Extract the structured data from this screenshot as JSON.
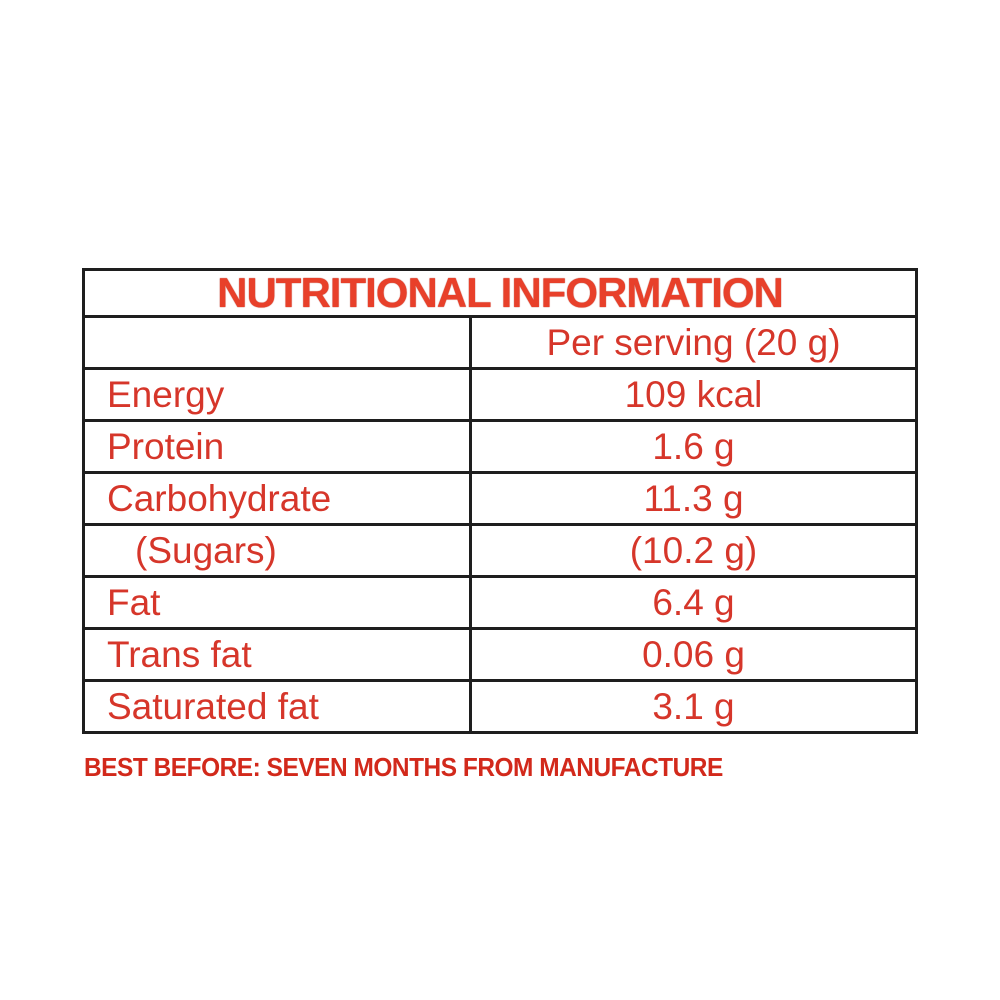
{
  "table": {
    "title": "NUTRITIONAL INFORMATION",
    "column_header": "Per serving (20 g)",
    "rows": [
      {
        "label": "Energy",
        "value": "109 kcal"
      },
      {
        "label": "Protein",
        "value": "1.6 g"
      },
      {
        "label": "Carbohydrate",
        "value": "11.3 g"
      },
      {
        "label": "(Sugars)",
        "value": "(10.2 g)"
      },
      {
        "label": "Fat",
        "value": "6.4 g"
      },
      {
        "label": "Trans fat",
        "value": "0.06 g"
      },
      {
        "label": "Saturated fat",
        "value": "3.1 g"
      }
    ]
  },
  "note": "BEST BEFORE: SEVEN MONTHS FROM MANUFACTURE",
  "colors": {
    "title_red": "#e8402a",
    "body_red": "#d6362a",
    "note_red": "#d2291b",
    "border_dark": "#1e1e1e",
    "background": "#ffffff"
  }
}
